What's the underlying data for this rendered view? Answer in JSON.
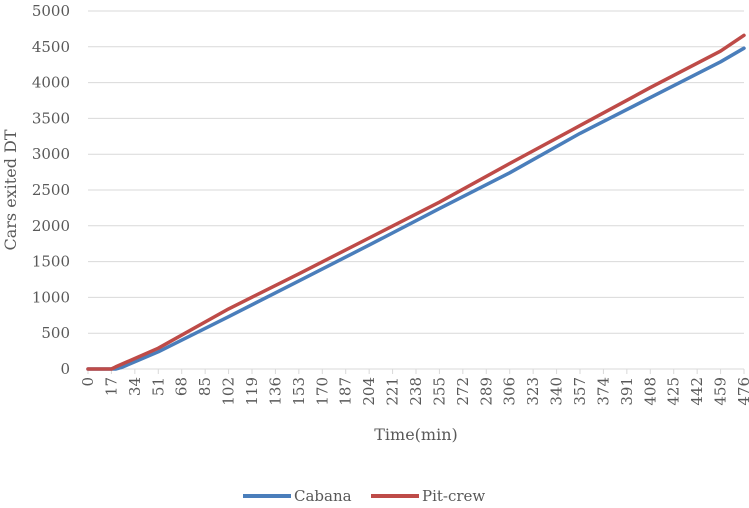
{
  "chart_data": {
    "type": "line",
    "title": "",
    "xlabel": "Time(min)",
    "ylabel": "Cars exited DT",
    "xlim": [
      0,
      476
    ],
    "ylim": [
      0,
      5000
    ],
    "y_ticks": [
      0,
      500,
      1000,
      1500,
      2000,
      2500,
      3000,
      3500,
      4000,
      4500,
      5000
    ],
    "x_ticks": [
      0,
      17,
      34,
      51,
      68,
      85,
      102,
      119,
      136,
      153,
      170,
      187,
      204,
      221,
      238,
      255,
      272,
      289,
      306,
      323,
      340,
      357,
      374,
      391,
      408,
      425,
      442,
      459,
      476
    ],
    "grid": "horizontal",
    "legend_position": "bottom",
    "series": [
      {
        "name": "Cabana",
        "color": "#4a7ebb",
        "points": [
          [
            0,
            0
          ],
          [
            20,
            0
          ],
          [
            24,
            20
          ],
          [
            51,
            240
          ],
          [
            102,
            730
          ],
          [
            153,
            1230
          ],
          [
            204,
            1730
          ],
          [
            255,
            2240
          ],
          [
            306,
            2740
          ],
          [
            357,
            3290
          ],
          [
            408,
            3790
          ],
          [
            459,
            4290
          ],
          [
            476,
            4480
          ]
        ]
      },
      {
        "name": "Pit-crew",
        "color": "#be4b48",
        "points": [
          [
            0,
            0
          ],
          [
            17,
            0
          ],
          [
            20,
            30
          ],
          [
            51,
            290
          ],
          [
            102,
            840
          ],
          [
            153,
            1330
          ],
          [
            204,
            1830
          ],
          [
            255,
            2330
          ],
          [
            306,
            2870
          ],
          [
            357,
            3400
          ],
          [
            408,
            3930
          ],
          [
            459,
            4440
          ],
          [
            476,
            4660
          ]
        ]
      }
    ]
  }
}
